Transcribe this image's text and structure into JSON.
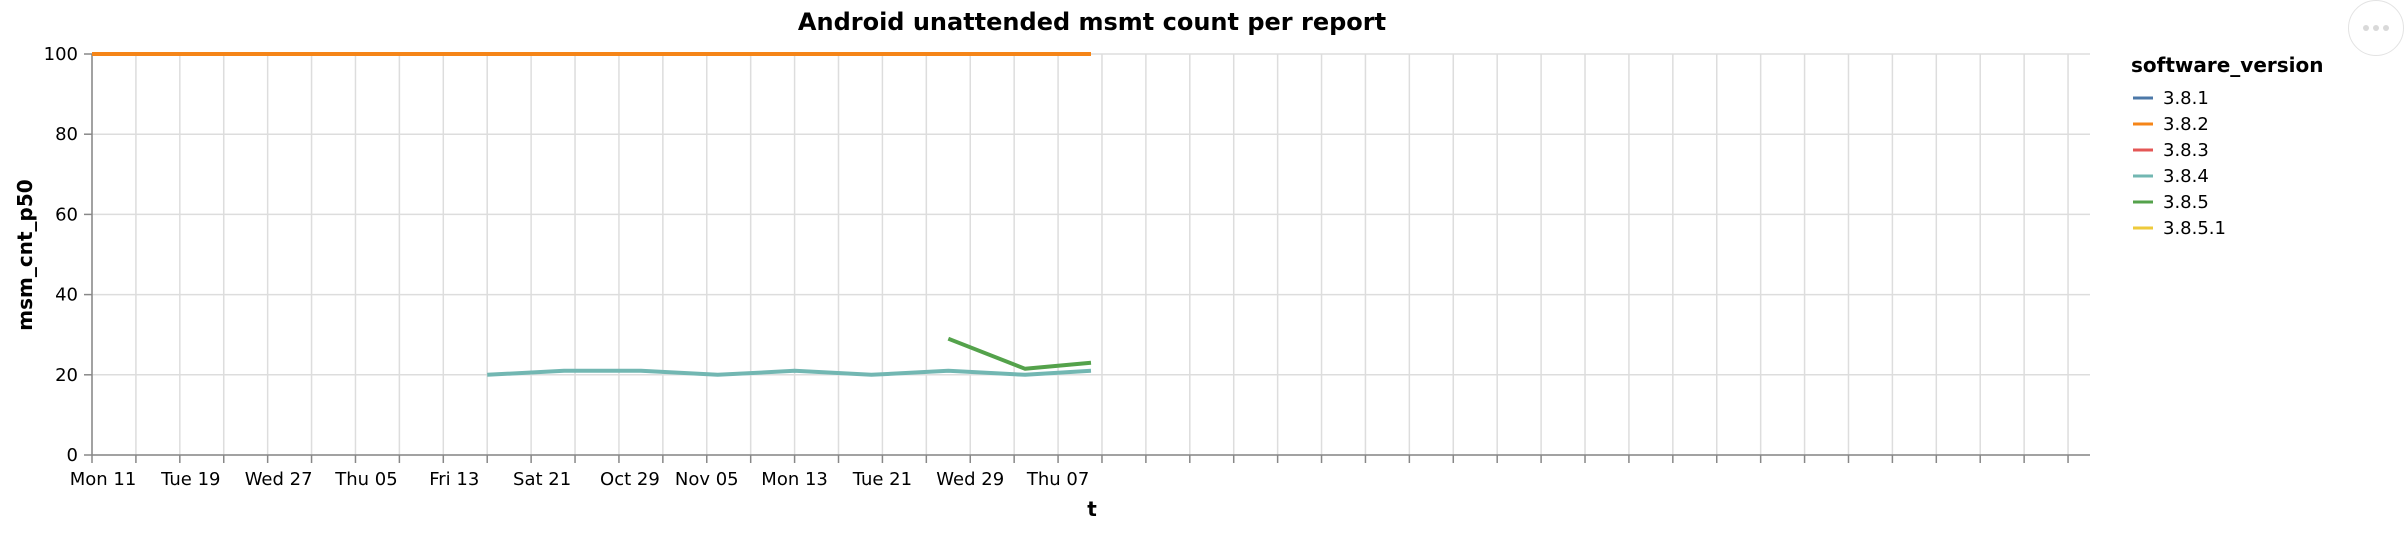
{
  "chart_data": {
    "type": "line",
    "title": "Android unattended msmt count per report",
    "xlabel": "t",
    "ylabel": "msm_cnt_p50",
    "ylim": [
      0,
      100
    ],
    "yticks": [
      0,
      20,
      40,
      60,
      80,
      100
    ],
    "x_range": [
      "2023-09-10",
      "2024-03-10"
    ],
    "xticks": [
      {
        "date": "2023-09-11",
        "label": "Mon 11"
      },
      {
        "date": "2023-09-19",
        "label": "Tue 19"
      },
      {
        "date": "2023-09-27",
        "label": "Wed 27"
      },
      {
        "date": "2023-10-05",
        "label": "Thu 05"
      },
      {
        "date": "2023-10-13",
        "label": "Fri 13"
      },
      {
        "date": "2023-10-21",
        "label": "Sat 21"
      },
      {
        "date": "2023-10-29",
        "label": "Oct 29"
      },
      {
        "date": "2023-11-05",
        "label": "Nov 05"
      },
      {
        "date": "2023-11-13",
        "label": "Mon 13"
      },
      {
        "date": "2023-11-21",
        "label": "Tue 21"
      },
      {
        "date": "2023-11-29",
        "label": "Wed 29"
      },
      {
        "date": "2023-12-07",
        "label": "Thu 07"
      }
    ],
    "grid": true,
    "legend": {
      "title": "software_version",
      "position": "right"
    },
    "series": [
      {
        "name": "3.8.1",
        "color": "#4c78a8",
        "points": []
      },
      {
        "name": "3.8.2",
        "color": "#f58518",
        "points": [
          {
            "x": "2023-09-10",
            "y": 100
          },
          {
            "x": "2023-12-10",
            "y": 100
          }
        ]
      },
      {
        "name": "3.8.3",
        "color": "#e45756",
        "points": []
      },
      {
        "name": "3.8.4",
        "color": "#72b7b2",
        "points": [
          {
            "x": "2023-10-16",
            "y": 20
          },
          {
            "x": "2023-10-23",
            "y": 21
          },
          {
            "x": "2023-10-30",
            "y": 21
          },
          {
            "x": "2023-11-06",
            "y": 20
          },
          {
            "x": "2023-11-13",
            "y": 21
          },
          {
            "x": "2023-11-20",
            "y": 20
          },
          {
            "x": "2023-11-27",
            "y": 21
          },
          {
            "x": "2023-12-04",
            "y": 20
          },
          {
            "x": "2023-12-10",
            "y": 21
          }
        ]
      },
      {
        "name": "3.8.5",
        "color": "#54a24b",
        "points": [
          {
            "x": "2023-11-27",
            "y": 29
          },
          {
            "x": "2023-12-04",
            "y": 21.5
          },
          {
            "x": "2023-12-10",
            "y": 23
          }
        ]
      },
      {
        "name": "3.8.5.1",
        "color": "#eeca3b",
        "points": []
      }
    ]
  },
  "actions": {
    "icon": "more-actions-icon"
  }
}
